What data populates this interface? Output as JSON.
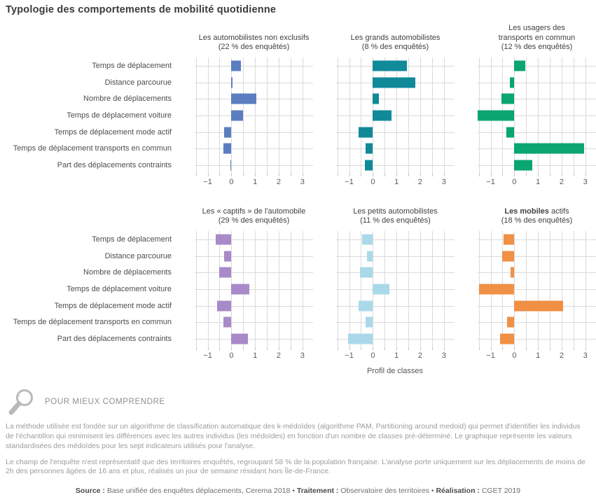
{
  "page": {
    "title": "Typologie des comportements de mobilité quotidienne"
  },
  "chart_data": {
    "type": "bar",
    "orientation": "horizontal",
    "title": "Typologie des comportements de mobilité quotidienne",
    "categories": [
      "Temps de déplacement",
      "Distance parcourue",
      "Nombre de déplacements",
      "Temps de déplacement voiture",
      "Temps de déplacement mode actif",
      "Temps de déplacement transports en commun",
      "Part des déplacements contraints"
    ],
    "xlabel": "Profil de classes",
    "xticks": [
      -1,
      0,
      1,
      2,
      3
    ],
    "xlim": [
      -1.55,
      3.45
    ],
    "grid": "vertical minor gridlines every 0.5 and one horizontal guide line per category, light gray",
    "panels": [
      {
        "title_lines": [
          "Les automobilistes non exclusifs",
          "(22 % des enquêtés)"
        ],
        "bold_prefix": "",
        "color": "#5b7ec0",
        "values": [
          0.4,
          0.05,
          1.05,
          0.5,
          -0.3,
          -0.35,
          -0.05
        ]
      },
      {
        "title_lines": [
          "Les grands automobilistes",
          "(8 % des enquêtés)"
        ],
        "bold_prefix": "",
        "color": "#108999",
        "values": [
          1.45,
          1.8,
          0.25,
          0.8,
          -0.6,
          -0.3,
          -0.35
        ]
      },
      {
        "title_lines": [
          "Les usagers des",
          "transports en commun",
          "(12 % des enquêtés)"
        ],
        "bold_prefix": "",
        "color": "#0ba572",
        "values": [
          0.45,
          -0.2,
          -0.55,
          -1.55,
          -0.35,
          2.95,
          0.75
        ]
      },
      {
        "title_lines": [
          "Les « captifs » de l'automobile",
          "(29 % des enquêtés)"
        ],
        "bold_prefix": "",
        "color": "#a98ac8",
        "values": [
          -0.65,
          -0.3,
          -0.5,
          0.75,
          -0.6,
          -0.35,
          0.7
        ]
      },
      {
        "title_lines": [
          "Les petits automobilistes",
          "(11 % des enquêtés)"
        ],
        "bold_prefix": "",
        "color": "#a9d9e9",
        "values": [
          -0.45,
          -0.25,
          -0.55,
          0.7,
          -0.6,
          -0.3,
          -1.05
        ]
      },
      {
        "title_lines": [
          "Les mobiles actifs",
          "(18 % des enquêtés)"
        ],
        "bold_prefix": "Les mobiles",
        "color": "#f09045",
        "values": [
          -0.45,
          -0.5,
          -0.15,
          -1.5,
          2.05,
          -0.3,
          -0.6
        ]
      }
    ]
  },
  "explainer": {
    "heading": "POUR MIEUX COMPRENDRE",
    "icon": "magnifier-icon",
    "icon_color": "#b9b9b9",
    "paragraphs": [
      "La méthode utilisée est fondée sur un algorithme de classification automatique des k-médoïdes (algorithme PAM, Partitioning around medoid) qui permet d'identifier les individus de l'échantillon qui minimisent les différences avec les autres individus (les médoïdes) en fonction d'un nombre de classes pré-déterminé. Le graphique représente les valeurs standardisées des médoïdes pour les sept indicateurs utilisés pour l'analyse.",
      "Le champ de l'enquête n'est représentatif que des territoires enquêtés, regroupant 58 % de la population française. L'analyse porte uniquement sur les déplacements de moins de 2h des personnes âgées de 16 ans et plus, réalisés un jour de semaine résidant hors Île-de-France."
    ]
  },
  "source_line": {
    "separator": "•",
    "parts": [
      {
        "label": "Source :",
        "text": "Base unifiée des enquêtes déplacements, Cerema 2018"
      },
      {
        "label": "Traitement :",
        "text": "Observatoire des territoires"
      },
      {
        "label": "Réalisation :",
        "text": "CGET 2019"
      }
    ]
  }
}
